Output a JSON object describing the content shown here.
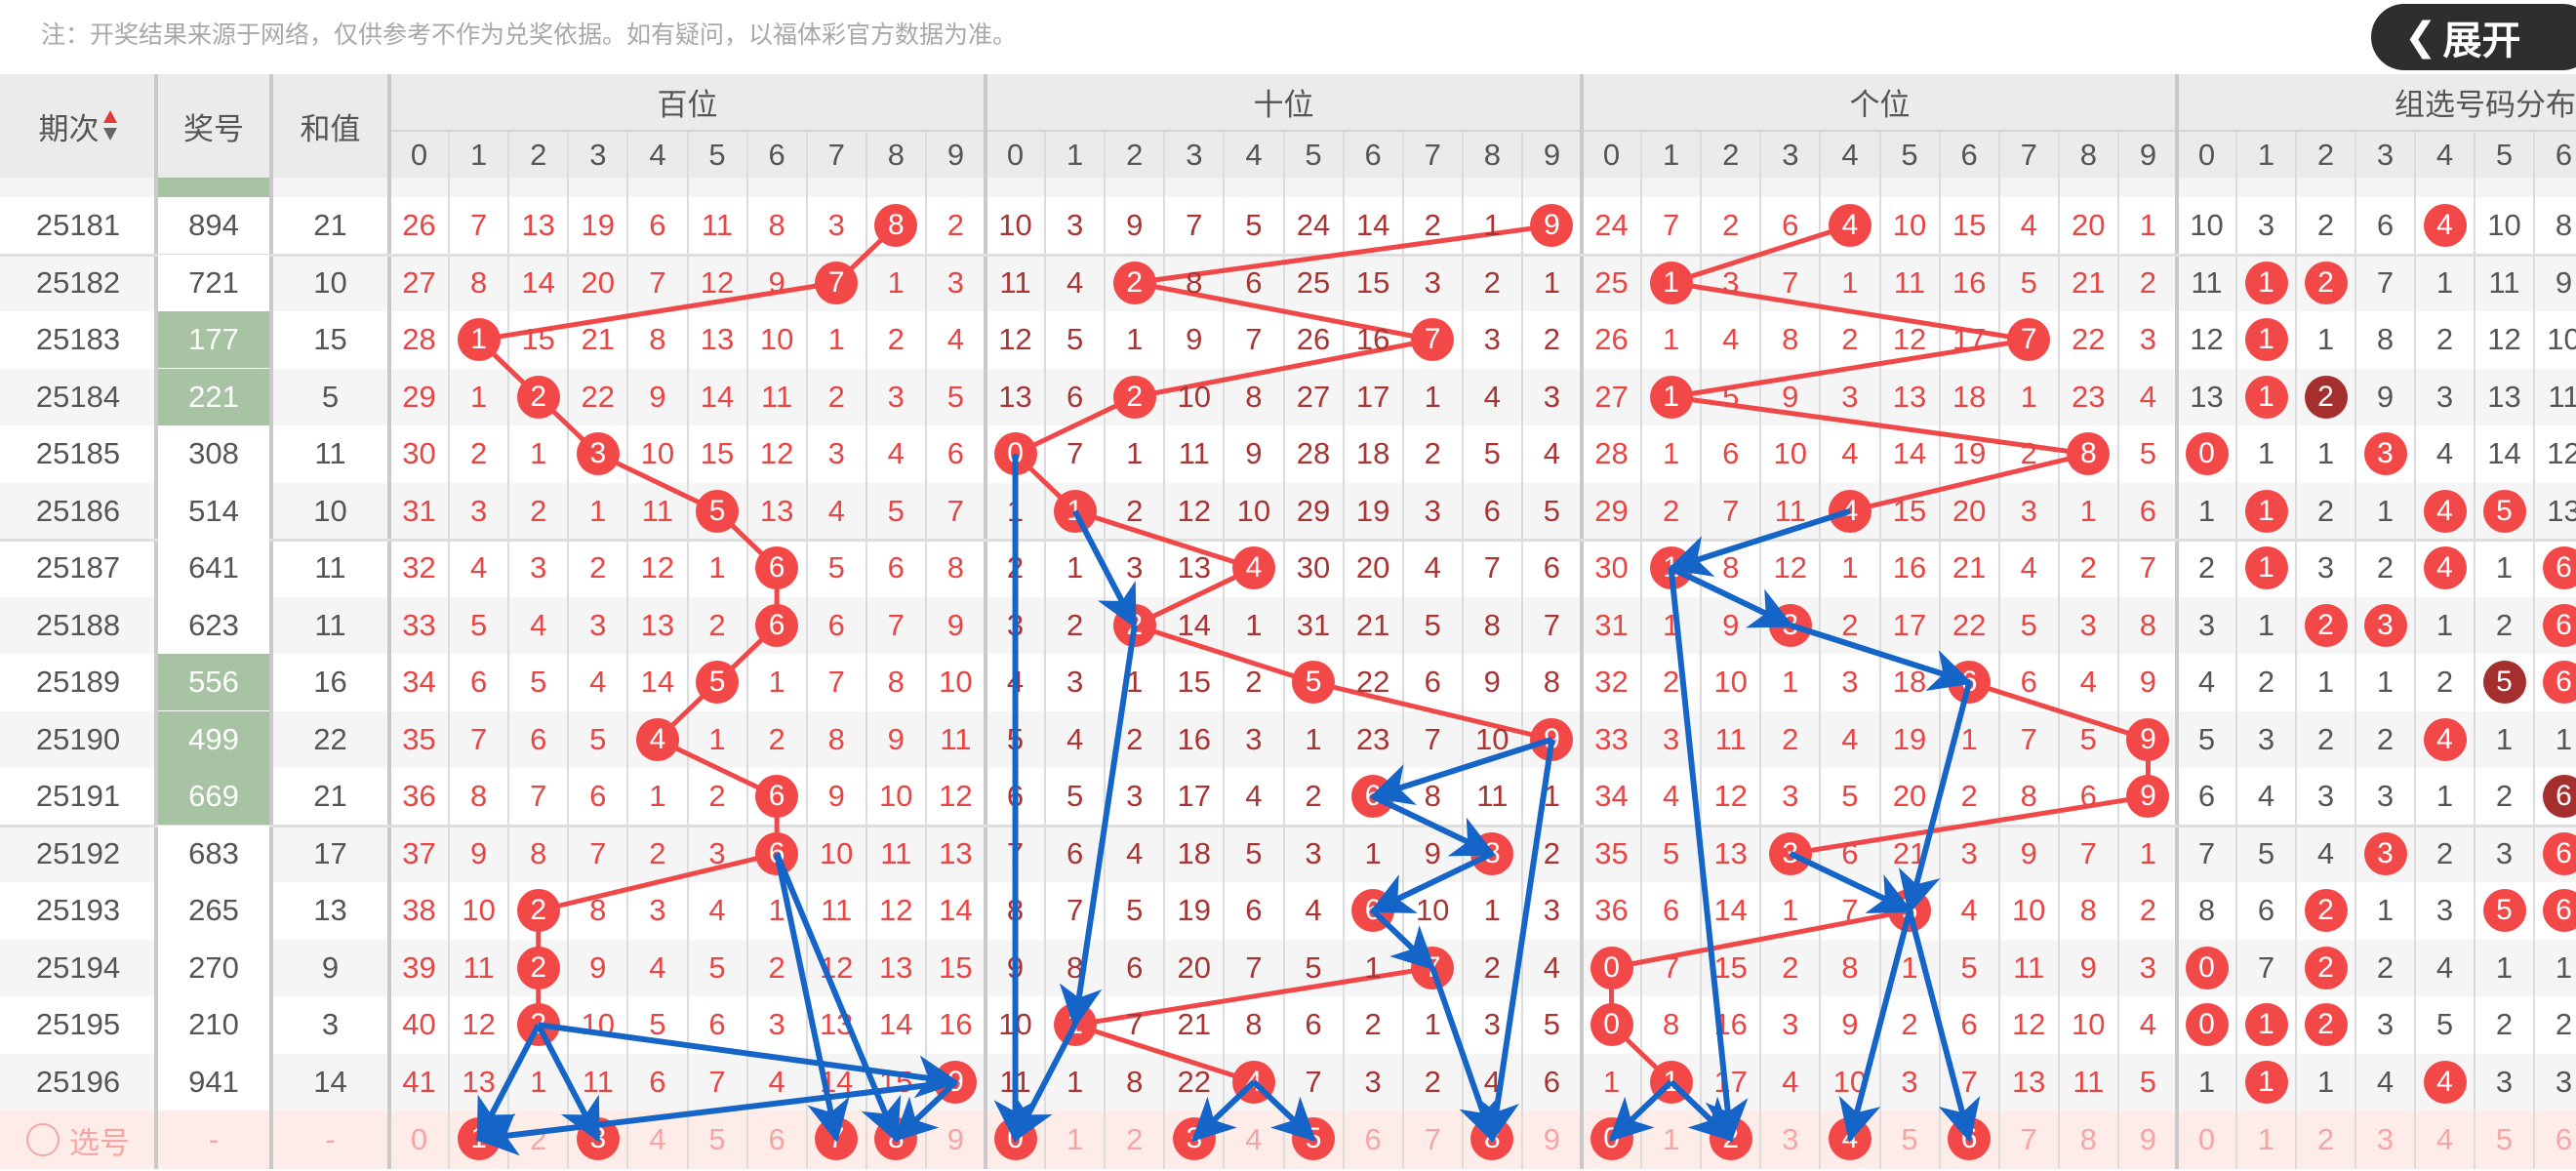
{
  "notice": "注：开奖结果来源于网络，仅供参考不作为兑奖依据。如有疑问，以福体彩官方数据为准。",
  "header": {
    "period": "期次",
    "number": "奖号",
    "sum": "和值",
    "sections": [
      "百位",
      "十位",
      "个位",
      "组选号码分布"
    ],
    "digits": [
      "0",
      "1",
      "2",
      "3",
      "4",
      "5",
      "6",
      "7",
      "8",
      "9"
    ],
    "sort_icon": "sort-up-down-icon"
  },
  "rows": [
    {
      "period": "25181",
      "number": "894",
      "sum": "21",
      "hundreds": [
        26,
        7,
        13,
        19,
        6,
        11,
        8,
        3,
        8,
        2
      ],
      "tens": [
        10,
        3,
        9,
        7,
        5,
        24,
        14,
        2,
        1,
        9
      ],
      "units": [
        24,
        7,
        2,
        6,
        4,
        10,
        15,
        4,
        20,
        1
      ],
      "group": [
        10,
        3,
        2,
        6,
        4,
        10,
        8
      ]
    },
    {
      "period": "25182",
      "number": "721",
      "sum": "10",
      "hundreds": [
        27,
        8,
        14,
        20,
        7,
        12,
        9,
        7,
        1,
        3
      ],
      "tens": [
        11,
        4,
        2,
        8,
        6,
        25,
        15,
        3,
        2,
        1
      ],
      "units": [
        25,
        1,
        3,
        7,
        1,
        11,
        16,
        5,
        21,
        2
      ],
      "group": [
        11,
        1,
        2,
        7,
        1,
        11,
        9
      ]
    },
    {
      "period": "25183",
      "number": "177",
      "sum": "15",
      "hundreds": [
        28,
        1,
        15,
        21,
        8,
        13,
        10,
        1,
        2,
        4
      ],
      "tens": [
        12,
        5,
        1,
        9,
        7,
        26,
        16,
        7,
        3,
        2
      ],
      "units": [
        26,
        1,
        4,
        8,
        2,
        12,
        17,
        7,
        22,
        3
      ],
      "group": [
        12,
        1,
        1,
        8,
        2,
        12,
        10
      ]
    },
    {
      "period": "25184",
      "number": "221",
      "sum": "5",
      "hundreds": [
        29,
        1,
        2,
        22,
        9,
        14,
        11,
        2,
        3,
        5
      ],
      "tens": [
        13,
        6,
        2,
        10,
        8,
        27,
        17,
        1,
        4,
        3
      ],
      "units": [
        27,
        1,
        5,
        9,
        3,
        13,
        18,
        1,
        23,
        4
      ],
      "group": [
        13,
        1,
        2,
        9,
        3,
        13,
        11
      ]
    },
    {
      "period": "25185",
      "number": "308",
      "sum": "11",
      "hundreds": [
        30,
        2,
        1,
        3,
        10,
        15,
        12,
        3,
        4,
        6
      ],
      "tens": [
        0,
        7,
        1,
        11,
        9,
        28,
        18,
        2,
        5,
        4
      ],
      "units": [
        28,
        1,
        6,
        10,
        4,
        14,
        19,
        2,
        8,
        5
      ],
      "group": [
        0,
        1,
        1,
        3,
        4,
        14,
        12
      ]
    },
    {
      "period": "25186",
      "number": "514",
      "sum": "10",
      "hundreds": [
        31,
        3,
        2,
        1,
        11,
        5,
        13,
        4,
        5,
        7
      ],
      "tens": [
        1,
        1,
        2,
        12,
        10,
        29,
        19,
        3,
        6,
        5
      ],
      "units": [
        29,
        2,
        7,
        11,
        4,
        15,
        20,
        3,
        1,
        6
      ],
      "group": [
        1,
        1,
        2,
        1,
        4,
        5,
        13
      ]
    },
    {
      "period": "25187",
      "number": "641",
      "sum": "11",
      "hundreds": [
        32,
        4,
        3,
        2,
        12,
        1,
        6,
        5,
        6,
        8
      ],
      "tens": [
        2,
        1,
        3,
        13,
        4,
        30,
        20,
        4,
        7,
        6
      ],
      "units": [
        30,
        1,
        8,
        12,
        1,
        16,
        21,
        4,
        2,
        7
      ],
      "group": [
        2,
        1,
        3,
        2,
        4,
        1,
        6
      ]
    },
    {
      "period": "25188",
      "number": "623",
      "sum": "11",
      "hundreds": [
        33,
        5,
        4,
        3,
        13,
        2,
        6,
        6,
        7,
        9
      ],
      "tens": [
        3,
        2,
        2,
        14,
        1,
        31,
        21,
        5,
        8,
        7
      ],
      "units": [
        31,
        1,
        9,
        3,
        2,
        17,
        22,
        5,
        3,
        8
      ],
      "group": [
        3,
        1,
        2,
        3,
        1,
        2,
        6
      ]
    },
    {
      "period": "25189",
      "number": "556",
      "sum": "16",
      "hundreds": [
        34,
        6,
        5,
        4,
        14,
        5,
        1,
        7,
        8,
        10
      ],
      "tens": [
        4,
        3,
        1,
        15,
        2,
        5,
        22,
        6,
        9,
        8
      ],
      "units": [
        32,
        2,
        10,
        1,
        3,
        18,
        6,
        6,
        4,
        9
      ],
      "group": [
        4,
        2,
        1,
        1,
        2,
        5,
        6
      ]
    },
    {
      "period": "25190",
      "number": "499",
      "sum": "22",
      "hundreds": [
        35,
        7,
        6,
        5,
        4,
        1,
        2,
        8,
        9,
        11
      ],
      "tens": [
        5,
        4,
        2,
        16,
        3,
        1,
        23,
        7,
        10,
        9
      ],
      "units": [
        33,
        3,
        11,
        2,
        4,
        19,
        1,
        7,
        5,
        9
      ],
      "group": [
        5,
        3,
        2,
        2,
        4,
        1,
        1
      ]
    },
    {
      "period": "25191",
      "number": "669",
      "sum": "21",
      "hundreds": [
        36,
        8,
        7,
        6,
        1,
        2,
        6,
        9,
        10,
        12
      ],
      "tens": [
        6,
        5,
        3,
        17,
        4,
        2,
        6,
        8,
        11,
        1
      ],
      "units": [
        34,
        4,
        12,
        3,
        5,
        20,
        2,
        8,
        6,
        9
      ],
      "group": [
        6,
        4,
        3,
        3,
        1,
        2,
        6
      ]
    },
    {
      "period": "25192",
      "number": "683",
      "sum": "17",
      "hundreds": [
        37,
        9,
        8,
        7,
        2,
        3,
        6,
        10,
        11,
        13
      ],
      "tens": [
        7,
        6,
        4,
        18,
        5,
        3,
        1,
        9,
        8,
        2
      ],
      "units": [
        35,
        5,
        13,
        3,
        6,
        21,
        3,
        9,
        7,
        1
      ],
      "group": [
        7,
        5,
        4,
        3,
        2,
        3,
        6
      ]
    },
    {
      "period": "25193",
      "number": "265",
      "sum": "13",
      "hundreds": [
        38,
        10,
        2,
        8,
        3,
        4,
        1,
        11,
        12,
        14
      ],
      "tens": [
        8,
        7,
        5,
        19,
        6,
        4,
        6,
        10,
        1,
        3
      ],
      "units": [
        36,
        6,
        14,
        1,
        7,
        5,
        4,
        10,
        8,
        2
      ],
      "group": [
        8,
        6,
        2,
        1,
        3,
        5,
        6
      ]
    },
    {
      "period": "25194",
      "number": "270",
      "sum": "9",
      "hundreds": [
        39,
        11,
        2,
        9,
        4,
        5,
        2,
        12,
        13,
        15
      ],
      "tens": [
        9,
        8,
        6,
        20,
        7,
        5,
        1,
        7,
        2,
        4
      ],
      "units": [
        0,
        7,
        15,
        2,
        8,
        1,
        5,
        11,
        9,
        3
      ],
      "group": [
        0,
        7,
        2,
        2,
        4,
        1,
        1
      ]
    },
    {
      "period": "25195",
      "number": "210",
      "sum": "3",
      "hundreds": [
        40,
        12,
        2,
        10,
        5,
        6,
        3,
        13,
        14,
        16
      ],
      "tens": [
        10,
        1,
        7,
        21,
        8,
        6,
        2,
        1,
        3,
        5
      ],
      "units": [
        0,
        8,
        16,
        3,
        9,
        2,
        6,
        12,
        10,
        4
      ],
      "group": [
        0,
        1,
        2,
        3,
        5,
        2,
        2
      ]
    },
    {
      "period": "25196",
      "number": "941",
      "sum": "14",
      "hundreds": [
        41,
        13,
        1,
        11,
        6,
        7,
        4,
        14,
        15,
        9
      ],
      "tens": [
        11,
        1,
        8,
        22,
        4,
        7,
        3,
        2,
        4,
        6
      ],
      "units": [
        1,
        1,
        17,
        4,
        10,
        3,
        7,
        13,
        11,
        5
      ],
      "group": [
        1,
        1,
        1,
        4,
        4,
        3,
        3
      ]
    }
  ],
  "select_row": {
    "label": "选号",
    "number": "-",
    "sum": "-",
    "selected": {
      "hundreds": [
        1,
        3,
        7,
        8
      ],
      "tens": [
        0,
        3,
        5,
        8
      ],
      "units": [
        0,
        2,
        4,
        6
      ]
    }
  },
  "expand_button": {
    "label": "展开",
    "icon": "chevron-left-icon"
  },
  "colors": {
    "ball": "#f24848",
    "ball_double": "#a52f2f",
    "hundreds_miss": "#e84545",
    "tens_miss": "#a83434",
    "units_miss": "#e84545",
    "group_miss": "#555555",
    "trend_line": "#f04848",
    "annotation_arrow": "#1565c8",
    "group3_number_bg": "#a7c3a3",
    "select_row_bg": "#fdece7",
    "select_text": "#f4a6a6"
  }
}
